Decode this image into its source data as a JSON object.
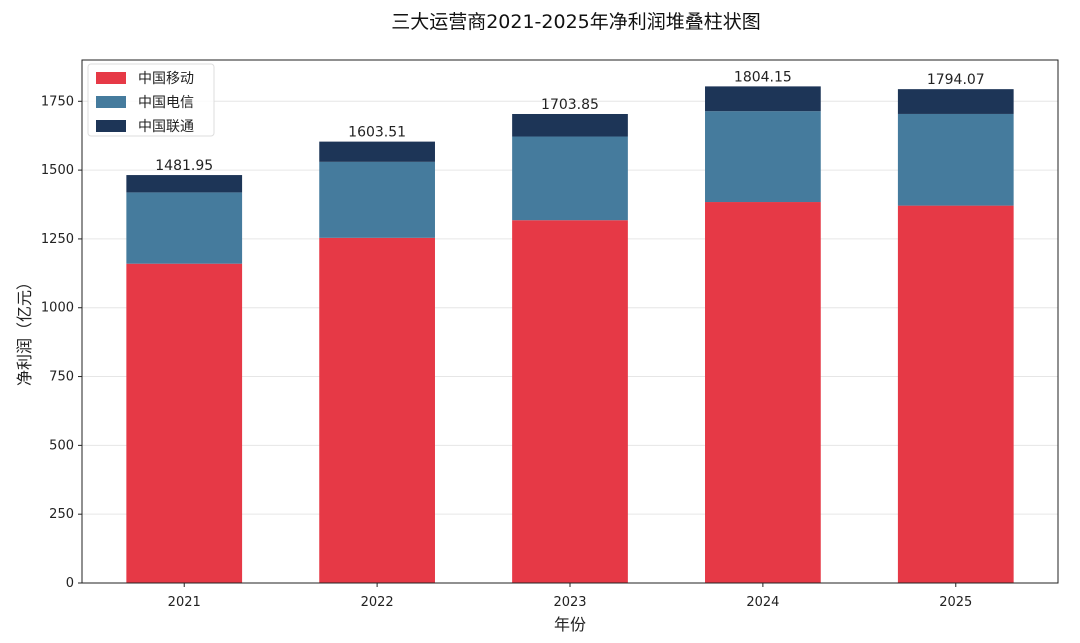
{
  "chart_data": {
    "type": "bar",
    "stacked": true,
    "title": "三大运营商2021-2025年净利润堆叠柱状图",
    "xlabel": "年份",
    "ylabel": "净利润（亿元）",
    "categories": [
      "2021",
      "2022",
      "2023",
      "2024",
      "2025"
    ],
    "series": [
      {
        "name": "中国移动",
        "color": "#e63946",
        "values": [
          1160,
          1254,
          1318,
          1384,
          1371
        ]
      },
      {
        "name": "中国电信",
        "color": "#457b9d",
        "values": [
          259,
          276,
          304,
          330,
          333
        ]
      },
      {
        "name": "中国联通",
        "color": "#1d3557",
        "values": [
          63,
          73.5,
          81.85,
          90.15,
          90.07
        ]
      }
    ],
    "totals": [
      "1481.95",
      "1603.51",
      "1703.85",
      "1804.15",
      "1794.07"
    ],
    "ylim": [
      0,
      1900
    ],
    "yticks": [
      0,
      250,
      500,
      750,
      1000,
      1250,
      1500,
      1750
    ],
    "grid": "horizontal",
    "legend": "top-left"
  }
}
